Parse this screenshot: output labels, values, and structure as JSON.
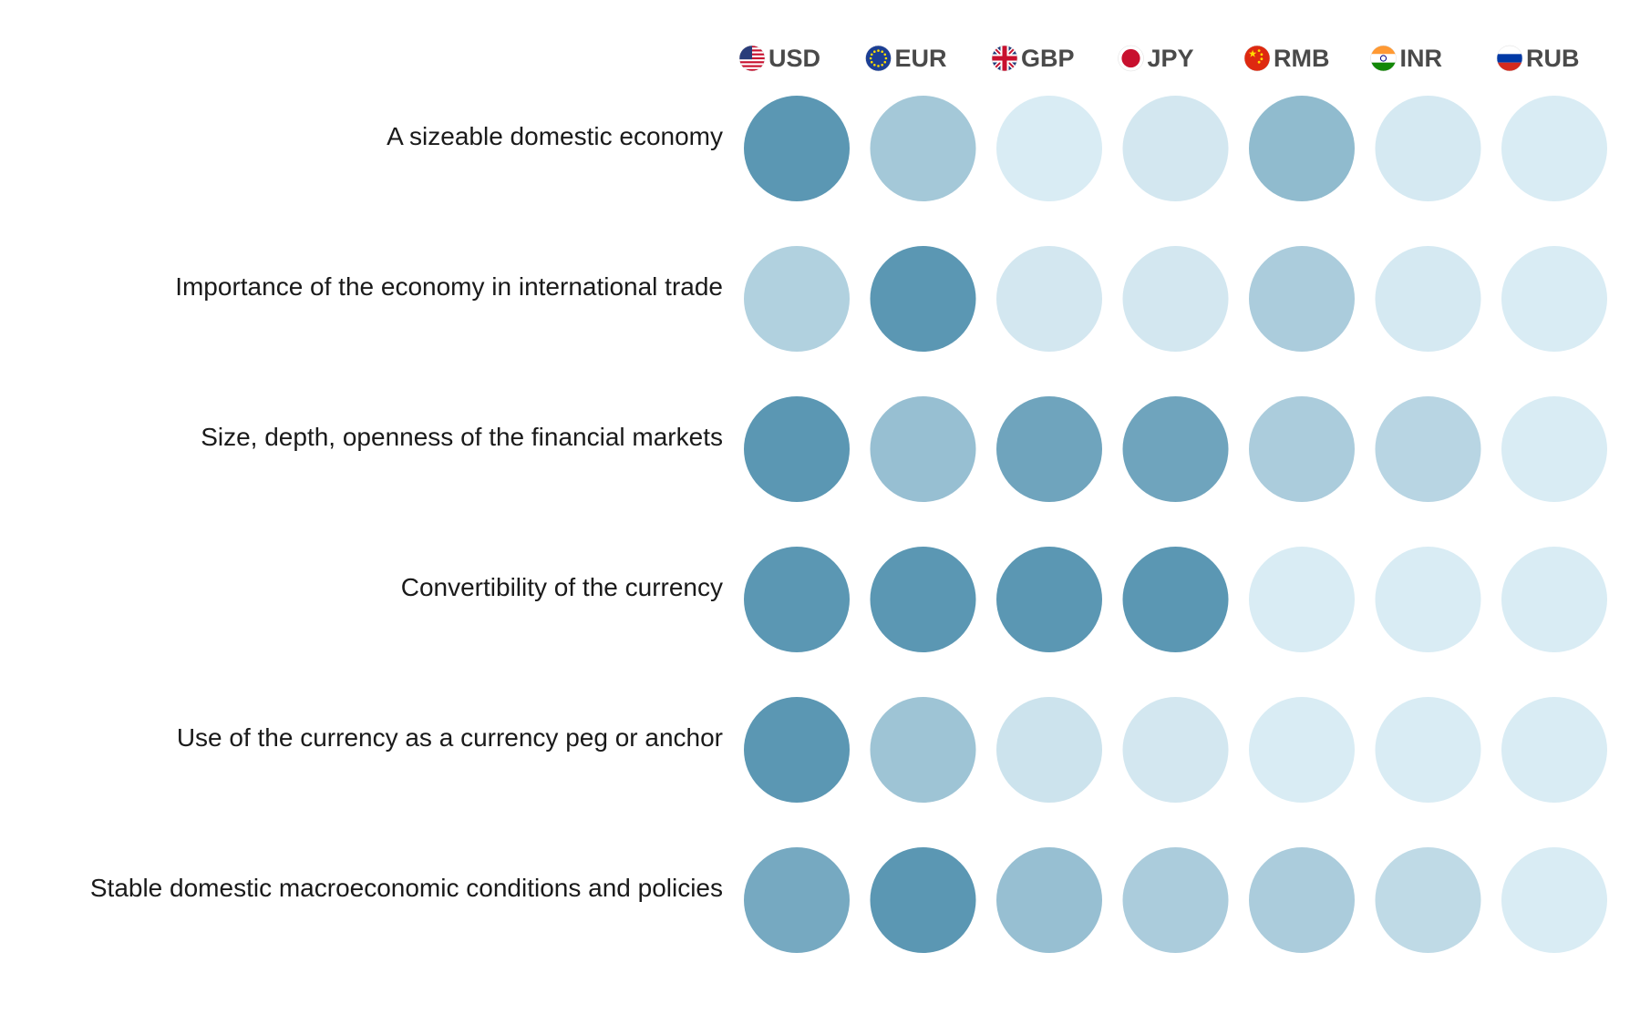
{
  "chart_data": {
    "type": "heatmap",
    "title": "",
    "xlabel": "",
    "ylabel": "",
    "grid": false,
    "legend": "none",
    "columns": [
      {
        "label": "USD",
        "flag": "us-flag-icon"
      },
      {
        "label": "EUR",
        "flag": "eu-flag-icon"
      },
      {
        "label": "GBP",
        "flag": "uk-flag-icon"
      },
      {
        "label": "JPY",
        "flag": "japan-flag-icon"
      },
      {
        "label": "RMB",
        "flag": "china-flag-icon"
      },
      {
        "label": "INR",
        "flag": "india-flag-icon"
      },
      {
        "label": "RUB",
        "flag": "russia-flag-icon"
      }
    ],
    "rows": [
      "A sizeable domestic economy",
      "Importance of the economy in international trade",
      "Size, depth, openness of the financial markets",
      "Convertibility of the currency",
      "Use of the currency as a currency peg or anchor",
      "Stable domestic macroeconomic conditions and policies"
    ],
    "values": [
      [
        1.0,
        0.45,
        0.05,
        0.1,
        0.6,
        0.08,
        0.05
      ],
      [
        0.35,
        1.0,
        0.1,
        0.1,
        0.4,
        0.08,
        0.05
      ],
      [
        1.0,
        0.55,
        0.85,
        0.85,
        0.4,
        0.3,
        0.05
      ],
      [
        1.0,
        1.0,
        1.0,
        1.0,
        0.05,
        0.05,
        0.05
      ],
      [
        1.0,
        0.5,
        0.15,
        0.1,
        0.05,
        0.05,
        0.05
      ],
      [
        0.8,
        1.0,
        0.55,
        0.4,
        0.4,
        0.25,
        0.05
      ]
    ],
    "value_range": [
      0,
      1
    ]
  },
  "colors": {
    "high": "#5b97b3",
    "low": "#e0f0f7",
    "row_label": "#1a1a1a",
    "col_label": "#4a4a4a"
  }
}
